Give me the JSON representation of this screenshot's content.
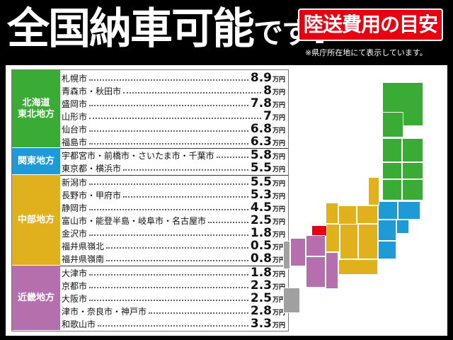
{
  "header": {
    "title_main": "全国納車可能",
    "title_small": "です",
    "title_end": "!",
    "badge": "陸送費用の目安",
    "note": "※県庁所在地にて表示しています。"
  },
  "colors": {
    "hokkaido_tohoku": "#3aab35",
    "kanto": "#1e9bd7",
    "chubu": "#e0b11c",
    "kinki": "#b46fac",
    "highlight": "#e60012",
    "other": "#a0a0a0"
  },
  "regions": [
    {
      "name": "北海道\n東北地方",
      "color": "#3aab35"
    },
    {
      "name": "関東地方",
      "color": "#1e9bd7"
    },
    {
      "name": "中部地方",
      "color": "#e0b11c"
    },
    {
      "name": "近畿地方",
      "color": "#b46fac"
    }
  ],
  "unit": "万円",
  "rows": [
    {
      "city": "札幌市",
      "price": "8.9"
    },
    {
      "city": "青森市・秋田市",
      "price": "8"
    },
    {
      "city": "盛岡市",
      "price": "7.8"
    },
    {
      "city": "山形市",
      "price": "7"
    },
    {
      "city": "仙台市",
      "price": "6.8"
    },
    {
      "city": "福島市",
      "price": "6.3"
    },
    {
      "city": "宇都宮市・前橋市・さいたま市・千葉市",
      "price": "5.8"
    },
    {
      "city": "東京都・横浜市",
      "price": "5.5"
    },
    {
      "city": "新潟市",
      "price": "5.5"
    },
    {
      "city": "長野市・甲府市",
      "price": "5.3"
    },
    {
      "city": "静岡市",
      "price": "4.5"
    },
    {
      "city": "富山市・能登半島・岐阜市・名古屋市",
      "price": "2.5"
    },
    {
      "city": "金沢市",
      "price": "1.8"
    },
    {
      "city": "福井県嶺北",
      "price": "0.5"
    },
    {
      "city": "福井県嶺南",
      "price": "0.8"
    },
    {
      "city": "大津市",
      "price": "1.8"
    },
    {
      "city": "京都市",
      "price": "2.3"
    },
    {
      "city": "大阪市",
      "price": "2.5"
    },
    {
      "city": "津市・奈良市・神戸市",
      "price": "2.8"
    },
    {
      "city": "和歌山市",
      "price": "3.3"
    }
  ]
}
